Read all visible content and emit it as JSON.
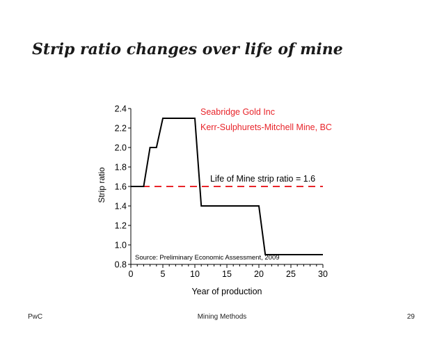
{
  "slide": {
    "title": "Strip ratio changes over life of mine"
  },
  "footer": {
    "left": "PwC",
    "center": "Mining Methods",
    "right": "29"
  },
  "colors": {
    "series": "#000000",
    "average_line": "#e8242a",
    "company_label": "#e8242a"
  },
  "chart_data": {
    "type": "line",
    "xlabel": "Year of production",
    "ylabel": "Strip ratio",
    "xlim": [
      0,
      30
    ],
    "ylim": [
      0.8,
      2.4
    ],
    "x_ticks": [
      0,
      5,
      10,
      15,
      20,
      25,
      30
    ],
    "y_ticks": [
      0.8,
      1.0,
      1.2,
      1.4,
      1.6,
      1.8,
      2.0,
      2.2,
      2.4
    ],
    "x_tick_labels": [
      "0",
      "5",
      "10",
      "15",
      "20",
      "25",
      "30"
    ],
    "y_tick_labels": [
      "0.8",
      "1.0",
      "1.2",
      "1.4",
      "1.6",
      "1.8",
      "2.0",
      "2.2",
      "2.4"
    ],
    "grid": false,
    "series": [
      {
        "x": [
          0,
          2,
          3,
          4,
          5,
          10,
          11,
          20,
          21,
          30
        ],
        "y": [
          1.6,
          1.6,
          2.0,
          2.0,
          2.3,
          2.3,
          1.4,
          1.4,
          0.9,
          0.9
        ]
      }
    ],
    "reference_line": {
      "y": 1.6,
      "label": "Life of Mine strip ratio = 1.6"
    },
    "annotations": {
      "company": "Seabridge Gold Inc",
      "project": "Kerr-Sulphurets-Mitchell Mine, BC",
      "source": "Source: Preliminary Economic Assessment, 2009"
    }
  }
}
